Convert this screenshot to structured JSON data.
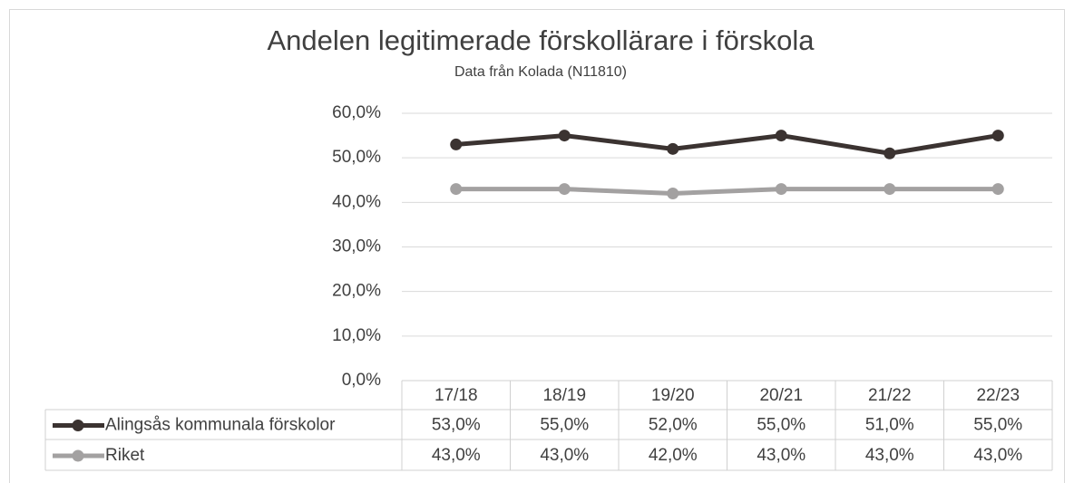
{
  "chart_data": {
    "type": "line",
    "title": "Andelen legitimerade förskollärare i förskola",
    "subtitle": "Data från Kolada (N11810)",
    "categories": [
      "17/18",
      "18/19",
      "19/20",
      "20/21",
      "21/22",
      "22/23"
    ],
    "series": [
      {
        "name": "Alingsås kommunala förskolor",
        "color": "#3b3331",
        "values": [
          53,
          55,
          52,
          55,
          51,
          55
        ],
        "value_labels": [
          "53,0%",
          "55,0%",
          "52,0%",
          "55,0%",
          "51,0%",
          "55,0%"
        ]
      },
      {
        "name": "Riket",
        "color": "#a3a1a1",
        "values": [
          43,
          43,
          42,
          43,
          43,
          43
        ],
        "value_labels": [
          "43,0%",
          "43,0%",
          "42,0%",
          "43,0%",
          "43,0%",
          "43,0%"
        ]
      }
    ],
    "ylim": [
      0,
      60
    ],
    "yticks": [
      {
        "value": 0,
        "label": "0,0%"
      },
      {
        "value": 10,
        "label": "10,0%"
      },
      {
        "value": 20,
        "label": "20,0%"
      },
      {
        "value": 30,
        "label": "30,0%"
      },
      {
        "value": 40,
        "label": "40,0%"
      },
      {
        "value": 50,
        "label": "50,0%"
      },
      {
        "value": 60,
        "label": "60,0%"
      }
    ],
    "grid": true
  }
}
